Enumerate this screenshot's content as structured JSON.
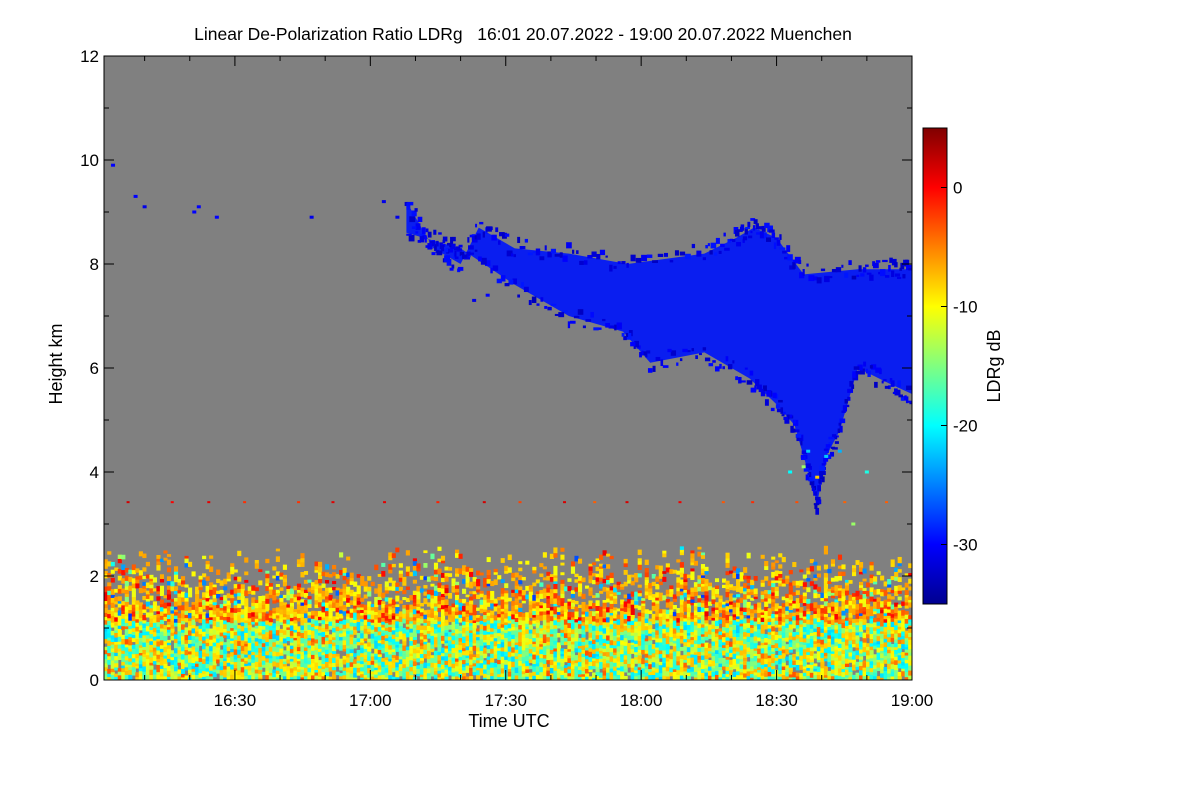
{
  "chart_data": {
    "type": "heatmap",
    "title": "Linear De-Polarization Ratio LDRg   16:01 20.07.2022 - 19:00 20.07.2022 Muenchen",
    "xlabel": "Time UTC",
    "ylabel": "Height km",
    "x_range_minutes_utc": [
      961,
      1140
    ],
    "x_ticks": [
      {
        "value": 990,
        "label": "16:30"
      },
      {
        "value": 1020,
        "label": "17:00"
      },
      {
        "value": 1050,
        "label": "17:30"
      },
      {
        "value": 1080,
        "label": "18:00"
      },
      {
        "value": 1110,
        "label": "18:30"
      },
      {
        "value": 1140,
        "label": "19:00"
      }
    ],
    "y_range_km": [
      0,
      12
    ],
    "y_ticks": [
      {
        "value": 0,
        "label": "0"
      },
      {
        "value": 2,
        "label": "2"
      },
      {
        "value": 4,
        "label": "4"
      },
      {
        "value": 6,
        "label": "6"
      },
      {
        "value": 8,
        "label": "8"
      },
      {
        "value": 10,
        "label": "10"
      },
      {
        "value": 12,
        "label": "12"
      }
    ],
    "no_data_color": "#808080",
    "colorbar": {
      "label": "LDRg dB",
      "range_db": [
        -35,
        5
      ],
      "ticks": [
        {
          "value": 0,
          "label": "0"
        },
        {
          "value": -10,
          "label": "-10"
        },
        {
          "value": -20,
          "label": "-20"
        },
        {
          "value": -30,
          "label": "-30"
        }
      ],
      "colormap": [
        "#00008f",
        "#0000ff",
        "#0080ff",
        "#00ffff",
        "#80ff80",
        "#ffff00",
        "#ff8000",
        "#ff0000",
        "#800000"
      ]
    },
    "features": {
      "cirrus_cloud": {
        "ldr_db": -31,
        "color": "#0a1ef0",
        "top_km": [
          [
            1028,
            9.2
          ],
          [
            1034,
            8.3
          ],
          [
            1040,
            8.0
          ],
          [
            1044,
            8.7
          ],
          [
            1052,
            8.3
          ],
          [
            1064,
            8.2
          ],
          [
            1077,
            8.0
          ],
          [
            1094,
            8.2
          ],
          [
            1101,
            8.5
          ],
          [
            1105,
            8.7
          ],
          [
            1110,
            8.5
          ],
          [
            1116,
            7.8
          ],
          [
            1128,
            7.9
          ],
          [
            1135,
            7.9
          ],
          [
            1140,
            7.9
          ]
        ],
        "base_km": [
          [
            1140,
            5.5
          ],
          [
            1135,
            5.7
          ],
          [
            1128,
            6.0
          ],
          [
            1124,
            4.8
          ],
          [
            1121,
            4.3
          ],
          [
            1119,
            3.4
          ],
          [
            1117,
            4.0
          ],
          [
            1114,
            4.9
          ],
          [
            1110,
            5.3
          ],
          [
            1104,
            5.8
          ],
          [
            1094,
            6.3
          ],
          [
            1082,
            6.1
          ],
          [
            1076,
            6.7
          ],
          [
            1064,
            7.0
          ],
          [
            1052,
            7.6
          ],
          [
            1040,
            8.3
          ],
          [
            1036,
            8.4
          ],
          [
            1028,
            8.6
          ]
        ]
      },
      "boundary_layer": {
        "top_km": 2.4,
        "ldr_range_db": [
          -28,
          -3
        ]
      }
    }
  }
}
